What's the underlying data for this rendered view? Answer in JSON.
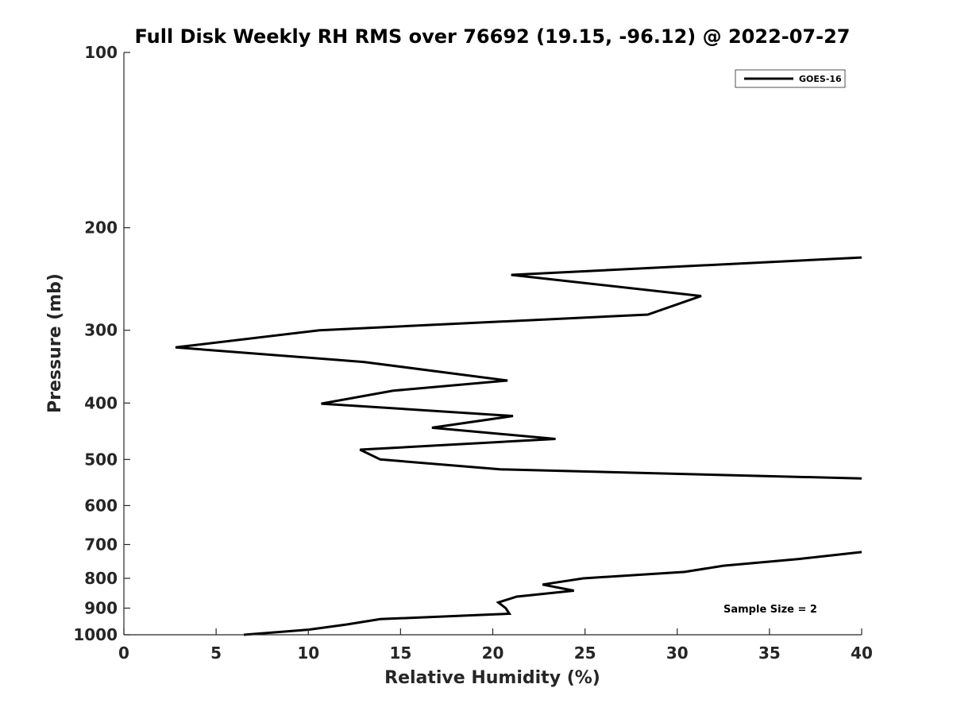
{
  "chart_data": {
    "type": "line",
    "title": "Full Disk Weekly RH RMS over 76692 (19.15, -96.12) @ 2022-07-27",
    "xlabel": "Relative Humidity (%)",
    "ylabel": "Pressure (mb)",
    "xlim": [
      0,
      40
    ],
    "ylim": [
      100,
      1000
    ],
    "y_scale": "log",
    "y_reversed": true,
    "x_ticks": [
      0,
      5,
      10,
      15,
      20,
      25,
      30,
      35,
      40
    ],
    "x_tick_labels": [
      "0",
      "5",
      "10",
      "15",
      "20",
      "25",
      "30",
      "35",
      "40"
    ],
    "y_ticks": [
      100,
      200,
      300,
      400,
      500,
      600,
      700,
      800,
      900,
      1000
    ],
    "y_tick_labels": [
      "100",
      "200",
      "300",
      "400",
      "500",
      "600",
      "700",
      "800",
      "900",
      "1000"
    ],
    "grid": false,
    "legend_position": "top-right",
    "annotation": "Sample Size = 2",
    "series": [
      {
        "name": "GOES-16",
        "color": "#000000",
        "segments": [
          [
            {
              "x": 40.0,
              "y": 225
            },
            {
              "x": 21.0,
              "y": 241
            },
            {
              "x": 31.3,
              "y": 262
            },
            {
              "x": 28.4,
              "y": 282
            },
            {
              "x": 10.6,
              "y": 300
            },
            {
              "x": 2.8,
              "y": 321
            },
            {
              "x": 13.0,
              "y": 340
            },
            {
              "x": 20.8,
              "y": 366
            },
            {
              "x": 14.6,
              "y": 381
            },
            {
              "x": 10.7,
              "y": 401
            },
            {
              "x": 21.1,
              "y": 421
            },
            {
              "x": 16.7,
              "y": 441
            },
            {
              "x": 23.4,
              "y": 461
            },
            {
              "x": 12.8,
              "y": 481
            },
            {
              "x": 13.9,
              "y": 500
            },
            {
              "x": 20.4,
              "y": 520
            },
            {
              "x": 40.0,
              "y": 539
            }
          ],
          [
            {
              "x": 40.0,
              "y": 721
            },
            {
              "x": 36.6,
              "y": 741
            },
            {
              "x": 32.5,
              "y": 761
            },
            {
              "x": 30.4,
              "y": 780
            },
            {
              "x": 24.9,
              "y": 800
            },
            {
              "x": 22.7,
              "y": 820
            },
            {
              "x": 24.4,
              "y": 840
            },
            {
              "x": 21.3,
              "y": 860
            },
            {
              "x": 20.3,
              "y": 880
            },
            {
              "x": 20.7,
              "y": 900
            },
            {
              "x": 20.9,
              "y": 920
            },
            {
              "x": 13.9,
              "y": 940
            },
            {
              "x": 12.1,
              "y": 960
            },
            {
              "x": 10.0,
              "y": 980
            },
            {
              "x": 6.5,
              "y": 1000
            }
          ]
        ]
      }
    ]
  }
}
